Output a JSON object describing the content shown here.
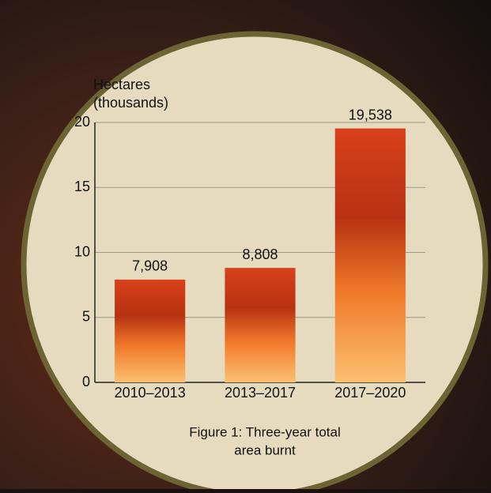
{
  "chart_data": {
    "type": "bar",
    "y_label": [
      "Hectares",
      "(thousands)"
    ],
    "caption": [
      "Figure 1: Three-year total",
      "area burnt"
    ],
    "categories": [
      "2010–2013",
      "2013–2017",
      "2017–2020"
    ],
    "values": [
      7.908,
      8.808,
      19.538
    ],
    "value_labels": [
      "7,908",
      "8,808",
      "19,538"
    ],
    "color": "#e8521a",
    "ylim": [
      0,
      20
    ],
    "yticks": [
      0,
      5,
      10,
      15,
      20
    ],
    "grid": true
  }
}
